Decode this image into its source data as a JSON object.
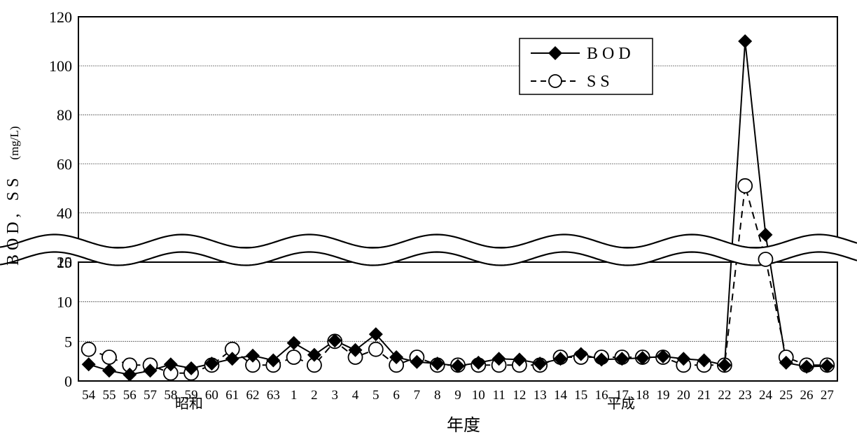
{
  "chart_data": {
    "type": "line",
    "ylabel": "BOD, SS",
    "yunit": "(mg/L)",
    "xlabel": "年度",
    "era_labels": [
      "昭和",
      "平成"
    ],
    "categories": [
      "54",
      "55",
      "56",
      "57",
      "58",
      "59",
      "60",
      "61",
      "62",
      "63",
      "1",
      "2",
      "3",
      "4",
      "5",
      "6",
      "7",
      "8",
      "9",
      "10",
      "11",
      "12",
      "13",
      "14",
      "15",
      "16",
      "17",
      "18",
      "19",
      "20",
      "21",
      "22",
      "23",
      "24",
      "25",
      "26",
      "27"
    ],
    "series": [
      {
        "name": "BOD",
        "marker": "filled-diamond",
        "line": "solid",
        "values": [
          2.1,
          1.3,
          0.8,
          1.3,
          2.1,
          1.6,
          2.2,
          2.8,
          3.2,
          2.6,
          4.8,
          3.3,
          5.1,
          3.9,
          5.9,
          3.0,
          2.4,
          2.2,
          1.9,
          2.3,
          2.8,
          2.7,
          2.2,
          2.8,
          3.4,
          2.7,
          2.8,
          2.9,
          3.1,
          2.8,
          2.6,
          2.0,
          110,
          31,
          2.3,
          1.8,
          1.9
        ]
      },
      {
        "name": "SS",
        "marker": "open-circle",
        "line": "dashed",
        "values": [
          4,
          3,
          2,
          2,
          1,
          1,
          2,
          4,
          2,
          2,
          3,
          2,
          5,
          3,
          4,
          2,
          3,
          2,
          2,
          2,
          2,
          2,
          2,
          3,
          3,
          3,
          3,
          3,
          3,
          2,
          2,
          2,
          51,
          21,
          3,
          2,
          2
        ]
      }
    ],
    "yaxis_lower": {
      "range": [
        0,
        15
      ],
      "ticks": [
        "0",
        "5",
        "10",
        "15"
      ]
    },
    "yaxis_upper": {
      "range": [
        15,
        120
      ],
      "ticks": [
        "20",
        "40",
        "60",
        "80",
        "100",
        "120"
      ]
    },
    "axis_break": true,
    "grid": "horizontal",
    "legend": "top-right"
  }
}
